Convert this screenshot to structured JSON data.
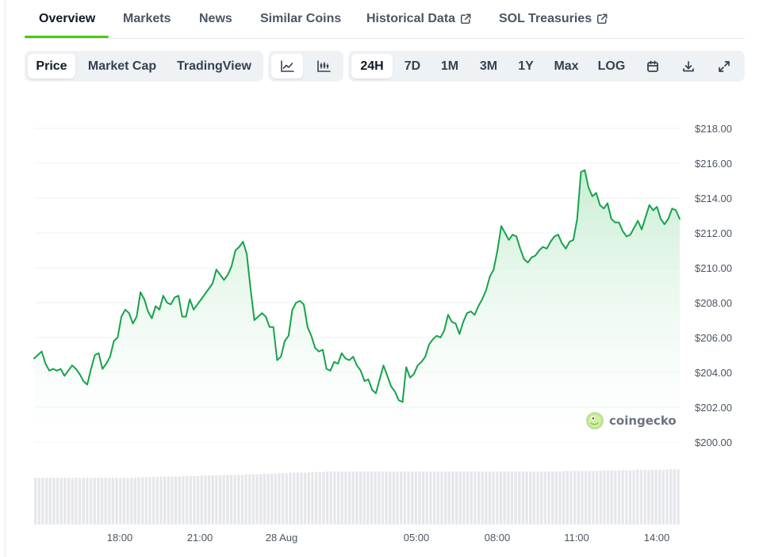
{
  "tabs": [
    {
      "label": "Overview",
      "active": true
    },
    {
      "label": "Markets"
    },
    {
      "label": "News"
    },
    {
      "label": "Similar Coins"
    },
    {
      "label": "Historical Data",
      "icon": "external-link-icon"
    },
    {
      "label": "SOL Treasuries",
      "icon": "external-link-icon"
    }
  ],
  "toolbar": {
    "view_options": [
      "Price",
      "Market Cap",
      "TradingView"
    ],
    "selected_view": "Price",
    "chart_type_icons": [
      "line-chart-icon",
      "candlestick-chart-icon"
    ],
    "selected_chart_type": "line-chart-icon",
    "ranges": [
      "24H",
      "7D",
      "1M",
      "3M",
      "1Y",
      "Max",
      "LOG"
    ],
    "selected_range": "24H",
    "action_icons": [
      "calendar-icon",
      "download-icon",
      "expand-icon"
    ]
  },
  "colors": {
    "accent": "#4bcc00",
    "line": "#16a34a",
    "fill_top": "#c6ecd2",
    "volume": "#e5e7eb"
  },
  "watermark": "coingecko",
  "chart_data": {
    "type": "area",
    "y_ticks": [
      "$218.00",
      "$216.00",
      "$214.00",
      "$212.00",
      "$210.00",
      "$208.00",
      "$206.00",
      "$204.00",
      "$202.00",
      "$200.00"
    ],
    "x_ticks": [
      "18:00",
      "21:00",
      "28 Aug",
      "05:00",
      "08:00",
      "11:00",
      "14:00"
    ],
    "ylim": [
      200,
      218
    ],
    "grid": true,
    "series": [
      {
        "values": [
          204.8,
          205.0,
          205.2,
          204.5,
          204.1,
          204.2,
          204.1,
          204.2,
          203.8,
          204.1,
          204.4,
          204.2,
          203.9,
          203.5,
          203.3,
          204.2,
          205.0,
          205.1,
          204.2,
          204.5,
          204.9,
          205.8,
          206.0,
          207.2,
          207.6,
          207.4,
          206.8,
          207.2,
          208.6,
          208.2,
          207.5,
          207.1,
          207.8,
          207.6,
          208.4,
          208.0,
          207.9,
          208.3,
          208.4,
          207.2,
          207.2,
          208.2,
          207.6,
          207.9,
          208.2,
          208.5,
          208.8,
          209.1,
          209.9,
          209.6,
          209.3,
          209.6,
          210.1,
          211.0,
          211.2,
          211.5,
          210.8,
          208.8,
          207.0,
          207.2,
          207.4,
          207.2,
          206.6,
          206.6,
          204.7,
          204.9,
          205.8,
          206.1,
          207.6,
          208.0,
          208.1,
          207.9,
          206.6,
          206.1,
          205.4,
          205.2,
          205.3,
          204.2,
          204.1,
          204.6,
          204.5,
          205.1,
          204.8,
          204.7,
          204.9,
          204.4,
          204.1,
          203.5,
          203.6,
          203.0,
          202.8,
          203.6,
          204.4,
          203.8,
          203.2,
          202.9,
          202.4,
          202.3,
          204.3,
          203.7,
          203.9,
          204.4,
          204.6,
          204.9,
          205.6,
          205.9,
          206.1,
          206.0,
          206.4,
          207.3,
          206.9,
          206.8,
          206.2,
          206.9,
          207.4,
          207.5,
          207.3,
          207.8,
          208.2,
          208.7,
          209.5,
          209.9,
          211.0,
          212.4,
          212.0,
          211.6,
          211.9,
          211.8,
          211.1,
          210.5,
          210.3,
          210.6,
          210.7,
          211.0,
          211.2,
          211.1,
          211.5,
          211.8,
          211.9,
          211.4,
          211.1,
          211.5,
          211.6,
          212.8,
          215.5,
          215.6,
          214.6,
          214.1,
          214.3,
          213.6,
          213.4,
          213.7,
          212.8,
          212.6,
          212.6,
          212.1,
          211.8,
          211.9,
          212.3,
          212.7,
          212.2,
          212.9,
          213.6,
          213.3,
          213.5,
          212.8,
          212.5,
          212.8,
          213.4,
          213.3,
          212.8
        ]
      }
    ],
    "volume": [
      0.82,
      0.82,
      0.82,
      0.82,
      0.82,
      0.82,
      0.82,
      0.82,
      0.82,
      0.82,
      0.82,
      0.82,
      0.82,
      0.82,
      0.82,
      0.82,
      0.82,
      0.82,
      0.82,
      0.82,
      0.82,
      0.82,
      0.82,
      0.82,
      0.82,
      0.82,
      0.82,
      0.82,
      0.83,
      0.83,
      0.83,
      0.83,
      0.83,
      0.83,
      0.84,
      0.84,
      0.84,
      0.84,
      0.84,
      0.84,
      0.85,
      0.85,
      0.85,
      0.85,
      0.85,
      0.86,
      0.86,
      0.86,
      0.86,
      0.86,
      0.86,
      0.87,
      0.87,
      0.87,
      0.87,
      0.87,
      0.87,
      0.88,
      0.88,
      0.88,
      0.88,
      0.88,
      0.89,
      0.89,
      0.89,
      0.89,
      0.9,
      0.9,
      0.9,
      0.91,
      0.91,
      0.91,
      0.91,
      0.91,
      0.92,
      0.92,
      0.92,
      0.92,
      0.92,
      0.93,
      0.93,
      0.93,
      0.93,
      0.93,
      0.93,
      0.93,
      0.93,
      0.93,
      0.93,
      0.93,
      0.93,
      0.93,
      0.93,
      0.93,
      0.93,
      0.93,
      0.93,
      0.93,
      0.93,
      0.93,
      0.93,
      0.93,
      0.93,
      0.93,
      0.93,
      0.93,
      0.93,
      0.93,
      0.93,
      0.93,
      0.93,
      0.93,
      0.93,
      0.93,
      0.93,
      0.93,
      0.93,
      0.93,
      0.93,
      0.93,
      0.93,
      0.93,
      0.93,
      0.93,
      0.93,
      0.93,
      0.93,
      0.93,
      0.93,
      0.93,
      0.93,
      0.93,
      0.93,
      0.93,
      0.93,
      0.93,
      0.93,
      0.93,
      0.93,
      0.93,
      0.93,
      0.93,
      0.93,
      0.94,
      0.94,
      0.94,
      0.94,
      0.94,
      0.94,
      0.94,
      0.94,
      0.94,
      0.94,
      0.94,
      0.95,
      0.95,
      0.95,
      0.95,
      0.95,
      0.95,
      0.95,
      0.95,
      0.95,
      0.96,
      0.96,
      0.96,
      0.96,
      0.96,
      0.96,
      0.96,
      0.96,
      0.96,
      0.97,
      0.97,
      0.97
    ]
  }
}
